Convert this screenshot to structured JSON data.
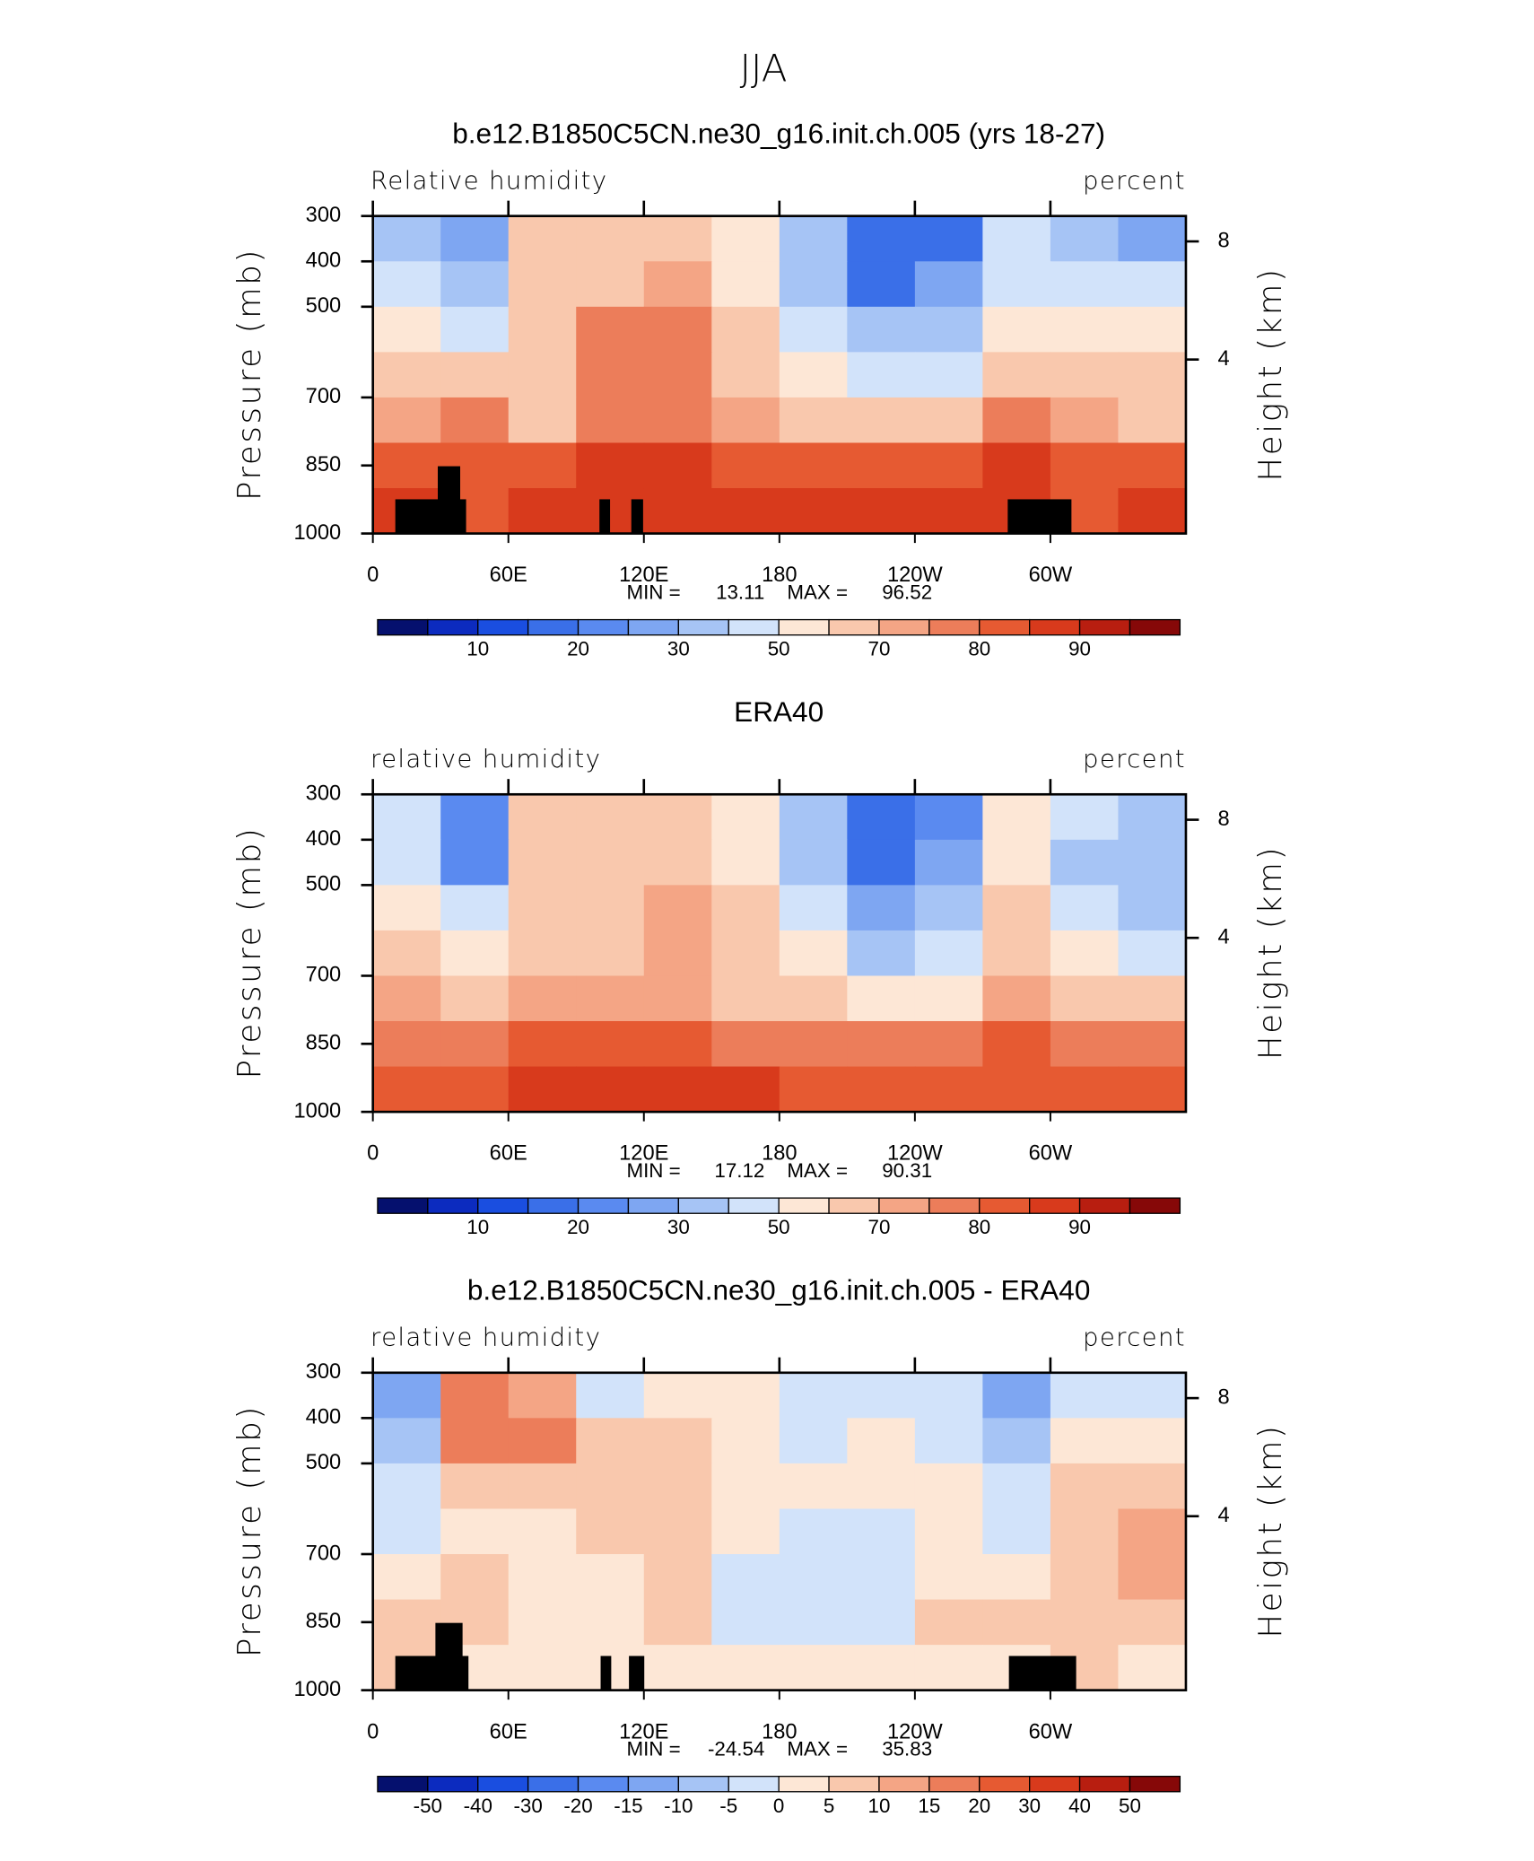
{
  "title": "JJA",
  "chart_data": [
    {
      "type": "contour",
      "title": "b.e12.B1850C5CN.ne30_g16.init.ch.005 (yrs 18-27)",
      "left_label": "Relative humidity",
      "right_label": "percent",
      "ylabel": "Pressure (mb)",
      "y2label": "Height (km)",
      "xlim": [
        0,
        360
      ],
      "xticks": [
        0,
        {
          "value": 60,
          "label": "60E"
        },
        {
          "value": 120,
          "label": "120E"
        },
        180,
        {
          "value": 240,
          "label": "120W"
        },
        {
          "value": 300,
          "label": "60W"
        }
      ],
      "ylim": [
        1000,
        300
      ],
      "yticks": [
        300,
        400,
        500,
        700,
        850,
        1000
      ],
      "y2ticks": [
        4,
        8
      ],
      "x": [
        15,
        45,
        75,
        105,
        135,
        165,
        195,
        225,
        255,
        285,
        315,
        345
      ],
      "y": [
        350,
        450,
        550,
        650,
        750,
        850,
        950
      ],
      "z": [
        [
          35,
          25,
          65,
          60,
          60,
          50,
          35,
          15,
          15,
          40,
          35,
          25
        ],
        [
          40,
          30,
          60,
          65,
          70,
          50,
          30,
          18,
          25,
          40,
          45,
          40
        ],
        [
          50,
          45,
          60,
          75,
          78,
          60,
          40,
          30,
          35,
          50,
          50,
          50
        ],
        [
          60,
          60,
          60,
          75,
          78,
          65,
          50,
          40,
          45,
          60,
          60,
          60
        ],
        [
          70,
          75,
          65,
          75,
          78,
          70,
          60,
          60,
          62,
          75,
          70,
          65
        ],
        [
          80,
          80,
          80,
          85,
          85,
          82,
          80,
          80,
          80,
          85,
          80,
          80
        ],
        [
          85,
          80,
          88,
          88,
          88,
          88,
          88,
          88,
          88,
          85,
          80,
          88
        ]
      ],
      "min_label": "MIN =",
      "min": 13.11,
      "max_label": "MAX =",
      "max": 96.52,
      "levels": [
        5,
        10,
        15,
        20,
        25,
        30,
        40,
        50,
        60,
        70,
        75,
        80,
        85,
        90,
        95
      ],
      "colors": [
        "#05106e",
        "#0c2bbf",
        "#1a4ee0",
        "#3a6fe8",
        "#5a8af0",
        "#7ea6f2",
        "#a6c4f5",
        "#d2e3fa",
        "#fde7d6",
        "#f9c8ad",
        "#f4a585",
        "#ec7d5a",
        "#e65a32",
        "#d83a1c",
        "#b81e10",
        "#860808"
      ],
      "colorbar_label_stride": 2
    },
    {
      "type": "contour",
      "title": "ERA40",
      "left_label": "relative humidity",
      "right_label": "percent",
      "ylabel": "Pressure (mb)",
      "y2label": "Height (km)",
      "xlim": [
        0,
        360
      ],
      "xticks": [
        0,
        {
          "value": 60,
          "label": "60E"
        },
        {
          "value": 120,
          "label": "120E"
        },
        180,
        {
          "value": 240,
          "label": "120W"
        },
        {
          "value": 300,
          "label": "60W"
        }
      ],
      "ylim": [
        1000,
        300
      ],
      "yticks": [
        300,
        400,
        500,
        700,
        850,
        1000
      ],
      "y2ticks": [
        4,
        8
      ],
      "x": [
        15,
        45,
        75,
        105,
        135,
        165,
        195,
        225,
        255,
        285,
        315,
        345
      ],
      "y": [
        350,
        450,
        550,
        650,
        750,
        850,
        950
      ],
      "z": [
        [
          45,
          20,
          60,
          65,
          60,
          50,
          35,
          15,
          20,
          50,
          40,
          30
        ],
        [
          45,
          20,
          60,
          62,
          65,
          55,
          30,
          15,
          25,
          50,
          35,
          30
        ],
        [
          55,
          40,
          62,
          65,
          72,
          65,
          40,
          25,
          35,
          60,
          40,
          35
        ],
        [
          60,
          55,
          65,
          65,
          70,
          65,
          50,
          35,
          45,
          65,
          50,
          45
        ],
        [
          70,
          65,
          70,
          70,
          72,
          65,
          60,
          50,
          55,
          70,
          60,
          60
        ],
        [
          78,
          75,
          80,
          80,
          80,
          78,
          75,
          75,
          75,
          80,
          75,
          75
        ],
        [
          82,
          80,
          85,
          85,
          85,
          85,
          82,
          82,
          82,
          82,
          80,
          80
        ]
      ],
      "min_label": "MIN =",
      "min": 17.12,
      "max_label": "MAX =",
      "max": 90.31,
      "levels": [
        5,
        10,
        15,
        20,
        25,
        30,
        40,
        50,
        60,
        70,
        75,
        80,
        85,
        90,
        95
      ],
      "colors": [
        "#05106e",
        "#0c2bbf",
        "#1a4ee0",
        "#3a6fe8",
        "#5a8af0",
        "#7ea6f2",
        "#a6c4f5",
        "#d2e3fa",
        "#fde7d6",
        "#f9c8ad",
        "#f4a585",
        "#ec7d5a",
        "#e65a32",
        "#d83a1c",
        "#b81e10",
        "#860808"
      ],
      "colorbar_label_stride": 2
    },
    {
      "type": "contour",
      "title": "b.e12.B1850C5CN.ne30_g16.init.ch.005 - ERA40",
      "left_label": "relative humidity",
      "right_label": "percent",
      "ylabel": "Pressure (mb)",
      "y2label": "Height (km)",
      "xlim": [
        0,
        360
      ],
      "xticks": [
        0,
        {
          "value": 60,
          "label": "60E"
        },
        {
          "value": 120,
          "label": "120E"
        },
        180,
        {
          "value": 240,
          "label": "120W"
        },
        {
          "value": 300,
          "label": "60W"
        }
      ],
      "ylim": [
        1000,
        300
      ],
      "yticks": [
        300,
        400,
        500,
        700,
        850,
        1000
      ],
      "y2ticks": [
        4,
        8
      ],
      "x": [
        15,
        45,
        75,
        105,
        135,
        165,
        195,
        225,
        255,
        285,
        315,
        345
      ],
      "y": [
        350,
        450,
        550,
        650,
        750,
        850,
        950
      ],
      "z": [
        [
          -15,
          15,
          10,
          -5,
          2,
          0,
          -5,
          -2,
          -3,
          -15,
          -5,
          -3
        ],
        [
          -10,
          15,
          15,
          5,
          5,
          0,
          -3,
          2,
          -2,
          -10,
          2,
          0
        ],
        [
          -5,
          5,
          5,
          5,
          5,
          0,
          0,
          2,
          0,
          -3,
          5,
          5
        ],
        [
          -5,
          0,
          0,
          5,
          5,
          0,
          -5,
          -2,
          0,
          -3,
          5,
          10
        ],
        [
          0,
          5,
          0,
          3,
          5,
          -2,
          -2,
          -2,
          0,
          2,
          5,
          10
        ],
        [
          5,
          5,
          0,
          0,
          5,
          -2,
          -2,
          -2,
          5,
          5,
          5,
          5
        ],
        [
          5,
          0,
          2,
          0,
          3,
          0,
          0,
          0,
          3,
          3,
          5,
          3
        ]
      ],
      "min_label": "MIN =",
      "min": -24.54,
      "max_label": "MAX =",
      "max": 35.83,
      "levels": [
        -50,
        -40,
        -30,
        -20,
        -15,
        -10,
        -5,
        0,
        5,
        10,
        15,
        20,
        30,
        40,
        50
      ],
      "colors": [
        "#05106e",
        "#0c2bbf",
        "#1a4ee0",
        "#3a6fe8",
        "#5a8af0",
        "#7ea6f2",
        "#a6c4f5",
        "#d2e3fa",
        "#fde7d6",
        "#f9c8ad",
        "#f4a585",
        "#ec7d5a",
        "#e65a32",
        "#d83a1c",
        "#b81e10",
        "#860808"
      ],
      "colorbar_label_stride": 1
    }
  ]
}
